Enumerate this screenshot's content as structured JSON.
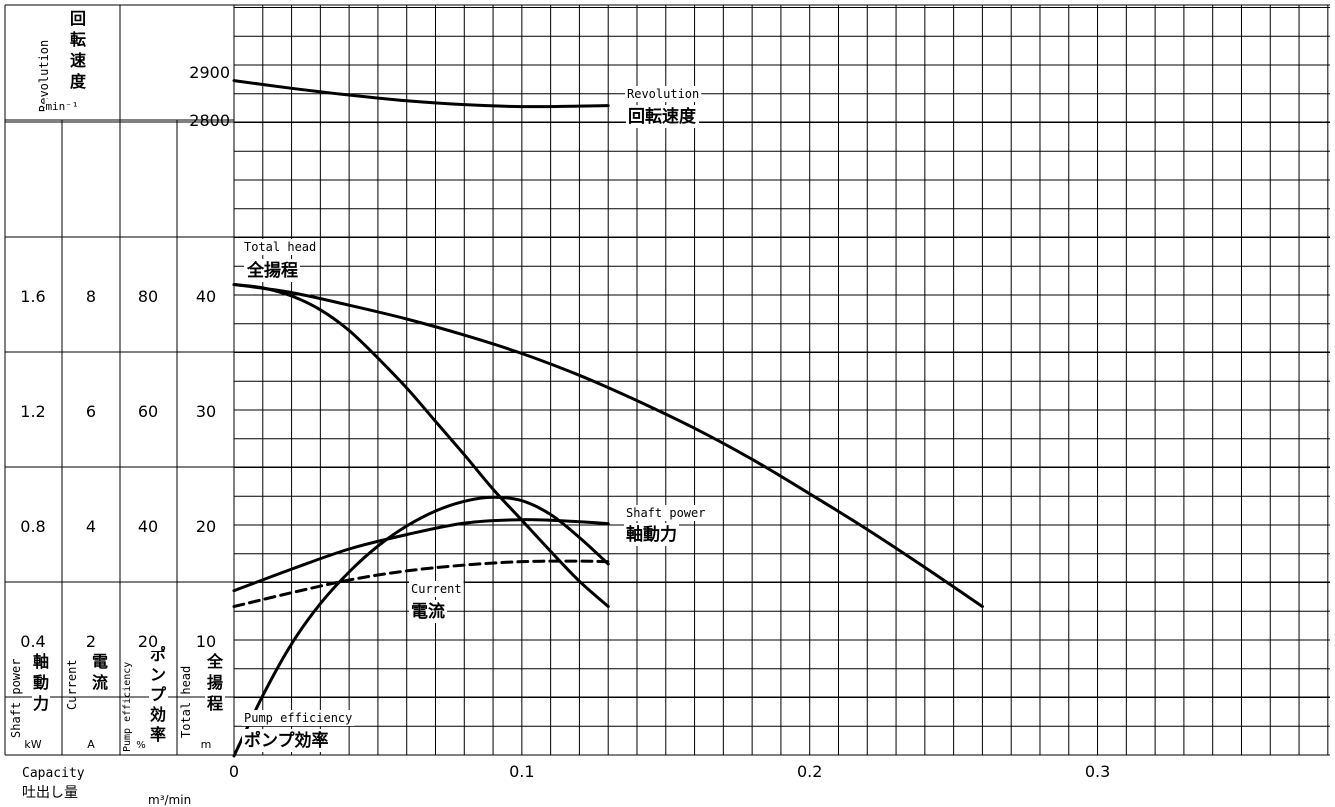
{
  "chart_data": {
    "type": "line",
    "xlim": [
      0,
      0.35
    ],
    "x_ticks": [
      "0",
      "0.1",
      "0.2",
      "0.3"
    ],
    "grid": true,
    "x_unit": "m³/min",
    "x_axis_label_en": "Capacity",
    "x_axis_label_jp": "吐出し量",
    "axes": {
      "revolution": {
        "label_en": "Revolution",
        "label_jp": "回転速度",
        "unit": "min⁻¹",
        "ticks": [
          "2900",
          "2800"
        ]
      },
      "shaft_power": {
        "label_en": "Shaft power",
        "label_jp": "軸動力",
        "unit": "kW",
        "ticks": [
          "1.6",
          "1.2",
          "0.8",
          "0.4"
        ]
      },
      "current": {
        "label_en": "Current",
        "label_jp": "電流",
        "unit": "A",
        "ticks": [
          "8",
          "6",
          "4",
          "2"
        ]
      },
      "efficiency": {
        "label_en": "Pump efficiency",
        "label_jp": "ポンプ効率",
        "unit": "%",
        "ticks": [
          "80",
          "60",
          "40",
          "20"
        ]
      },
      "head": {
        "label_en": "Total head",
        "label_jp": "全揚程",
        "unit": "m",
        "ticks": [
          "40",
          "30",
          "20",
          "10"
        ]
      }
    },
    "series": [
      {
        "name": "Revolution",
        "name_jp": "回転速度",
        "axis": "revolution",
        "style": "solid",
        "x": [
          0,
          0.02,
          0.04,
          0.06,
          0.08,
          0.1,
          0.12,
          0.13
        ],
        "y": [
          2882,
          2866,
          2852,
          2840,
          2832,
          2828,
          2829,
          2830
        ]
      },
      {
        "name": "Total head",
        "name_jp": "全揚程",
        "axis": "head",
        "style": "solid",
        "x": [
          0,
          0.02,
          0.04,
          0.06,
          0.08,
          0.1,
          0.12,
          0.14,
          0.16,
          0.18,
          0.2,
          0.22,
          0.24,
          0.26
        ],
        "y": [
          41,
          40.3,
          39.2,
          38,
          36.6,
          35,
          33.1,
          30.9,
          28.5,
          25.8,
          22.8,
          19.7,
          16.4,
          13
        ]
      },
      {
        "name": "",
        "axis": "head",
        "style": "solid",
        "x": [
          0,
          0.01,
          0.02,
          0.03,
          0.04,
          0.05,
          0.06,
          0.07,
          0.08,
          0.09,
          0.1,
          0.11,
          0.12,
          0.13
        ],
        "y": [
          41,
          40.7,
          40,
          38.8,
          37,
          34.6,
          32,
          29.1,
          26.2,
          23.2,
          20.5,
          17.8,
          15.2,
          13
        ]
      },
      {
        "name": "Shaft power",
        "name_jp": "軸動力",
        "axis": "shaft_power",
        "style": "solid",
        "x": [
          0,
          0.02,
          0.04,
          0.06,
          0.08,
          0.1,
          0.12,
          0.13
        ],
        "y": [
          0.575,
          0.65,
          0.72,
          0.77,
          0.81,
          0.822,
          0.815,
          0.808
        ]
      },
      {
        "name": "Current",
        "name_jp": "電流",
        "axis": "current",
        "style": "dashed",
        "x": [
          0,
          0.02,
          0.04,
          0.06,
          0.08,
          0.1,
          0.12,
          0.13
        ],
        "y": [
          2.6,
          2.84,
          3.06,
          3.22,
          3.32,
          3.38,
          3.39,
          3.38
        ]
      },
      {
        "name": "Pump efficiency",
        "name_jp": "ポンプ効率",
        "axis": "efficiency",
        "style": "solid",
        "x": [
          0,
          0.01,
          0.02,
          0.03,
          0.04,
          0.05,
          0.06,
          0.07,
          0.08,
          0.09,
          0.1,
          0.11,
          0.12,
          0.13
        ],
        "y": [
          0,
          10.5,
          19.5,
          26.5,
          32,
          36.5,
          40,
          42.6,
          44.3,
          45,
          44.4,
          42,
          38,
          33.4
        ]
      }
    ]
  }
}
